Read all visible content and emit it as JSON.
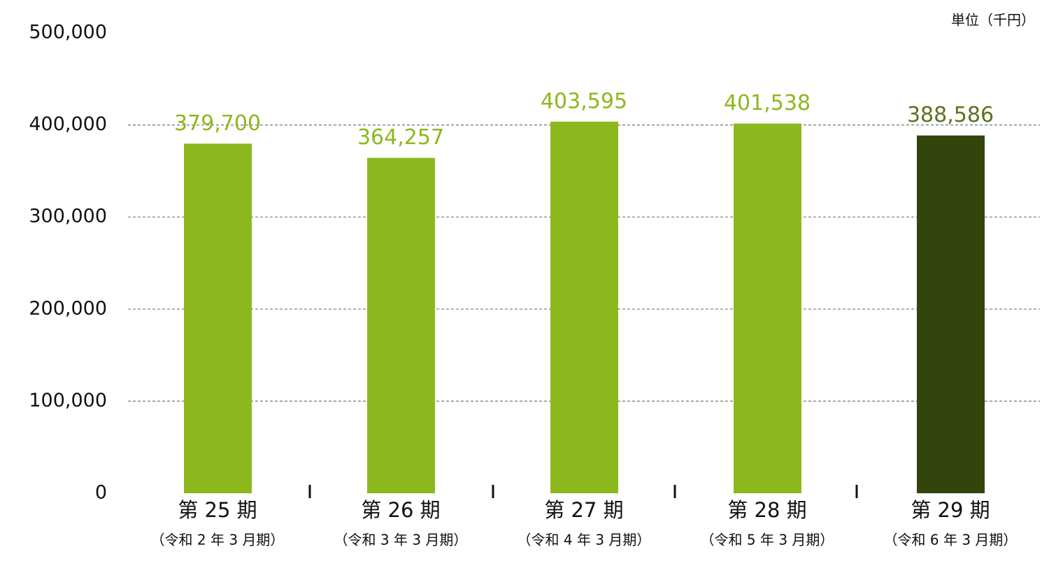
{
  "chart_data": {
    "type": "bar",
    "unit_label": "単位（千円）",
    "categories": [
      "第 25 期",
      "第 26 期",
      "第 27 期",
      "第 28 期",
      "第 29 期"
    ],
    "sublabels": [
      "（令和 2 年 3 月期）",
      "（令和 3 年 3 月期）",
      "（令和 4 年 3 月期）",
      "（令和 5 年 3 月期）",
      "（令和 6 年 3 月期）"
    ],
    "values": [
      379700,
      364257,
      403595,
      401538,
      388586
    ],
    "value_labels": [
      "379,700",
      "364,257",
      "403,595",
      "401,538",
      "388,586"
    ],
    "colors": [
      "#8cb81e",
      "#8cb81e",
      "#8cb81e",
      "#8cb81e",
      "#33450d"
    ],
    "label_colors": [
      "#8cb81e",
      "#8cb81e",
      "#8cb81e",
      "#8cb81e",
      "#5b7220"
    ],
    "ylim": [
      0,
      500000
    ],
    "yticks": [
      0,
      {
        "value": 100000,
        "label": "100,000"
      },
      {
        "value": 200000,
        "label": "200,000"
      },
      {
        "value": 300000,
        "label": "300,000"
      },
      {
        "value": 400000,
        "label": "400,000"
      },
      {
        "value": 500000,
        "label": "500,000"
      }
    ],
    "grid": true
  }
}
